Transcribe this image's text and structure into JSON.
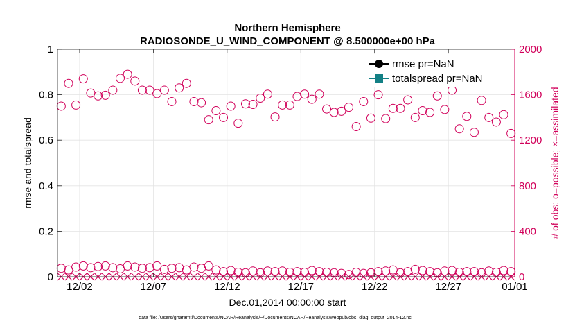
{
  "chart_data": {
    "type": "scatter",
    "title_line1": "Northern Hemisphere",
    "title_line2": "RADIOSONDE_U_WIND_COMPONENT @ 8.500000e+00 hPa",
    "xlabel": "Dec.01,2014 00:00:00 start",
    "ylabel_left": "rmse and totalspread",
    "ylabel_right": "# of obs: o=possible; ×=assimilated",
    "footnote": "data file: /Users/gharamti/Documents/NCAR/Reanalysis/~/Documents/NCAR/Reanalysis/webpub/obs_diag_output_2014-12.nc",
    "xlim": [
      0,
      31
    ],
    "ylim_left": [
      0,
      1
    ],
    "ylim_right": [
      0,
      2000
    ],
    "x_ticks": [
      {
        "value": 1.5,
        "label": "12/02"
      },
      {
        "value": 6.5,
        "label": "12/07"
      },
      {
        "value": 11.5,
        "label": "12/12"
      },
      {
        "value": 16.5,
        "label": "12/17"
      },
      {
        "value": 21.5,
        "label": "12/22"
      },
      {
        "value": 26.5,
        "label": "12/27"
      },
      {
        "value": 31.0,
        "label": "01/01"
      }
    ],
    "y_ticks_left": [
      {
        "value": 0,
        "label": "0"
      },
      {
        "value": 0.2,
        "label": "0.2"
      },
      {
        "value": 0.4,
        "label": "0.4"
      },
      {
        "value": 0.6,
        "label": "0.6"
      },
      {
        "value": 0.8,
        "label": "0.8"
      },
      {
        "value": 1,
        "label": "1"
      }
    ],
    "y_ticks_right": [
      {
        "value": 0,
        "label": "0"
      },
      {
        "value": 400,
        "label": "400"
      },
      {
        "value": 800,
        "label": "800"
      },
      {
        "value": 1200,
        "label": "1200"
      },
      {
        "value": 1600,
        "label": "1600"
      },
      {
        "value": 2000,
        "label": "2000"
      }
    ],
    "grid": true,
    "legend": {
      "position": "top-right",
      "entries": [
        {
          "name": "rmse pr=NaN",
          "color": "#000000",
          "marker": "circle-filled"
        },
        {
          "name": "totalspread pr=NaN",
          "color": "#138085",
          "marker": "square-filled"
        }
      ]
    },
    "series": [
      {
        "name": "obs possible (upper)",
        "axis": "right",
        "marker": "circle-open",
        "color": "#d1005a",
        "x": [
          0.25,
          0.75,
          1.25,
          1.75,
          2.25,
          2.75,
          3.25,
          3.75,
          4.25,
          4.75,
          5.25,
          5.75,
          6.25,
          6.75,
          7.25,
          7.75,
          8.25,
          8.75,
          9.25,
          9.75,
          10.25,
          10.75,
          11.25,
          11.75,
          12.25,
          12.75,
          13.25,
          13.75,
          14.25,
          14.75,
          15.25,
          15.75,
          16.25,
          16.75,
          17.25,
          17.75,
          18.25,
          18.75,
          19.25,
          19.75,
          20.25,
          20.75,
          21.25,
          21.75,
          22.25,
          22.75,
          23.25,
          23.75,
          24.25,
          24.75,
          25.25,
          25.75,
          26.25,
          26.75,
          27.25,
          27.75,
          28.25,
          28.75,
          29.25,
          29.75,
          30.25,
          30.75
        ],
        "y": [
          1500,
          1700,
          1510,
          1740,
          1615,
          1590,
          1595,
          1640,
          1745,
          1780,
          1720,
          1640,
          1640,
          1610,
          1640,
          1540,
          1660,
          1700,
          1540,
          1530,
          1380,
          1460,
          1400,
          1500,
          1350,
          1520,
          1515,
          1570,
          1605,
          1405,
          1510,
          1510,
          1585,
          1605,
          1560,
          1605,
          1475,
          1445,
          1455,
          1490,
          1320,
          1540,
          1395,
          1600,
          1390,
          1480,
          1480,
          1555,
          1400,
          1460,
          1445,
          1590,
          1470,
          1640,
          1300,
          1410,
          1270,
          1550,
          1400,
          1360,
          1425,
          1260
        ]
      },
      {
        "name": "obs possible (lower)",
        "axis": "right",
        "marker": "circle-open",
        "color": "#d1005a",
        "x": [
          0.25,
          0.75,
          1.25,
          1.75,
          2.25,
          2.75,
          3.25,
          3.75,
          4.25,
          4.75,
          5.25,
          5.75,
          6.25,
          6.75,
          7.25,
          7.75,
          8.25,
          8.75,
          9.25,
          9.75,
          10.25,
          10.75,
          11.25,
          11.75,
          12.25,
          12.75,
          13.25,
          13.75,
          14.25,
          14.75,
          15.25,
          15.75,
          16.25,
          16.75,
          17.25,
          17.75,
          18.25,
          18.75,
          19.25,
          19.75,
          20.25,
          20.75,
          21.25,
          21.75,
          22.25,
          22.75,
          23.25,
          23.75,
          24.25,
          24.75,
          25.25,
          25.75,
          26.25,
          26.75,
          27.25,
          27.75,
          28.25,
          28.75,
          29.25,
          29.75,
          30.25,
          30.75
        ],
        "y": [
          75,
          60,
          85,
          95,
          80,
          90,
          95,
          80,
          70,
          95,
          85,
          75,
          80,
          95,
          65,
          75,
          80,
          60,
          85,
          75,
          95,
          60,
          45,
          55,
          40,
          35,
          50,
          35,
          50,
          45,
          50,
          40,
          45,
          40,
          55,
          45,
          40,
          35,
          30,
          20,
          40,
          30,
          35,
          45,
          50,
          60,
          35,
          45,
          65,
          55,
          45,
          35,
          50,
          55,
          40,
          45,
          45,
          35,
          50,
          40,
          55,
          45
        ]
      },
      {
        "name": "obs assimilated",
        "axis": "right",
        "marker": "x",
        "color": "#d1005a",
        "x": [
          0.25,
          0.75,
          1.25,
          1.75,
          2.25,
          2.75,
          3.25,
          3.75,
          4.25,
          4.75,
          5.25,
          5.75,
          6.25,
          6.75,
          7.25,
          7.75,
          8.25,
          8.75,
          9.25,
          9.75,
          10.25,
          10.75,
          11.25,
          11.75,
          12.25,
          12.75,
          13.25,
          13.75,
          14.25,
          14.75,
          15.25,
          15.75,
          16.25,
          16.75,
          17.25,
          17.75,
          18.25,
          18.75,
          19.25,
          19.75,
          20.25,
          20.75,
          21.25,
          21.75,
          22.25,
          22.75,
          23.25,
          23.75,
          24.25,
          24.75,
          25.25,
          25.75,
          26.25,
          26.75,
          27.25,
          27.75,
          28.25,
          28.75,
          29.25,
          29.75,
          30.25,
          30.75
        ],
        "y": [
          0,
          0,
          0,
          0,
          0,
          0,
          0,
          0,
          0,
          0,
          0,
          0,
          0,
          0,
          0,
          0,
          0,
          0,
          0,
          0,
          0,
          0,
          0,
          0,
          0,
          0,
          0,
          0,
          0,
          0,
          0,
          0,
          0,
          0,
          0,
          0,
          0,
          0,
          0,
          0,
          0,
          0,
          0,
          0,
          0,
          0,
          0,
          0,
          0,
          0,
          0,
          0,
          0,
          0,
          0,
          0,
          0,
          0,
          0,
          0,
          0,
          0
        ]
      }
    ]
  }
}
